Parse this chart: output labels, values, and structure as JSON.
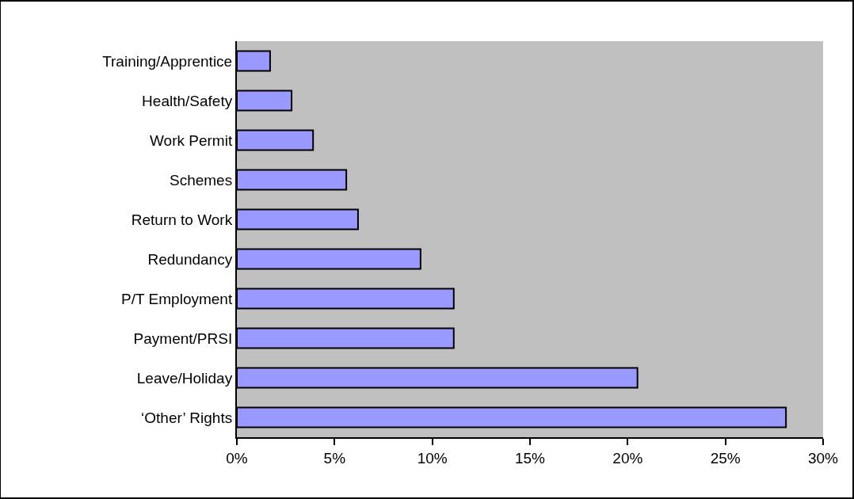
{
  "chart_data": {
    "type": "bar",
    "orientation": "horizontal",
    "categories": [
      "Training/Apprentice",
      "Health/Safety",
      "Work Permit",
      "Schemes",
      "Return to Work",
      "Redundancy",
      "P/T Employment",
      "Payment/PRSI",
      "Leave/Holiday",
      "‘Other’ Rights"
    ],
    "values": [
      1.7,
      2.8,
      3.9,
      5.6,
      6.2,
      9.4,
      11.1,
      11.1,
      20.5,
      28.1
    ],
    "color": "#9999ff",
    "xlim": [
      0,
      30
    ],
    "xticks": [
      {
        "value": 0,
        "label": "0%"
      },
      {
        "value": 5,
        "label": "5%"
      },
      {
        "value": 10,
        "label": "10%"
      },
      {
        "value": 15,
        "label": "15%"
      },
      {
        "value": 20,
        "label": "20%"
      },
      {
        "value": 25,
        "label": "25%"
      },
      {
        "value": 30,
        "label": "30%"
      }
    ],
    "grid": false,
    "legend": false
  }
}
